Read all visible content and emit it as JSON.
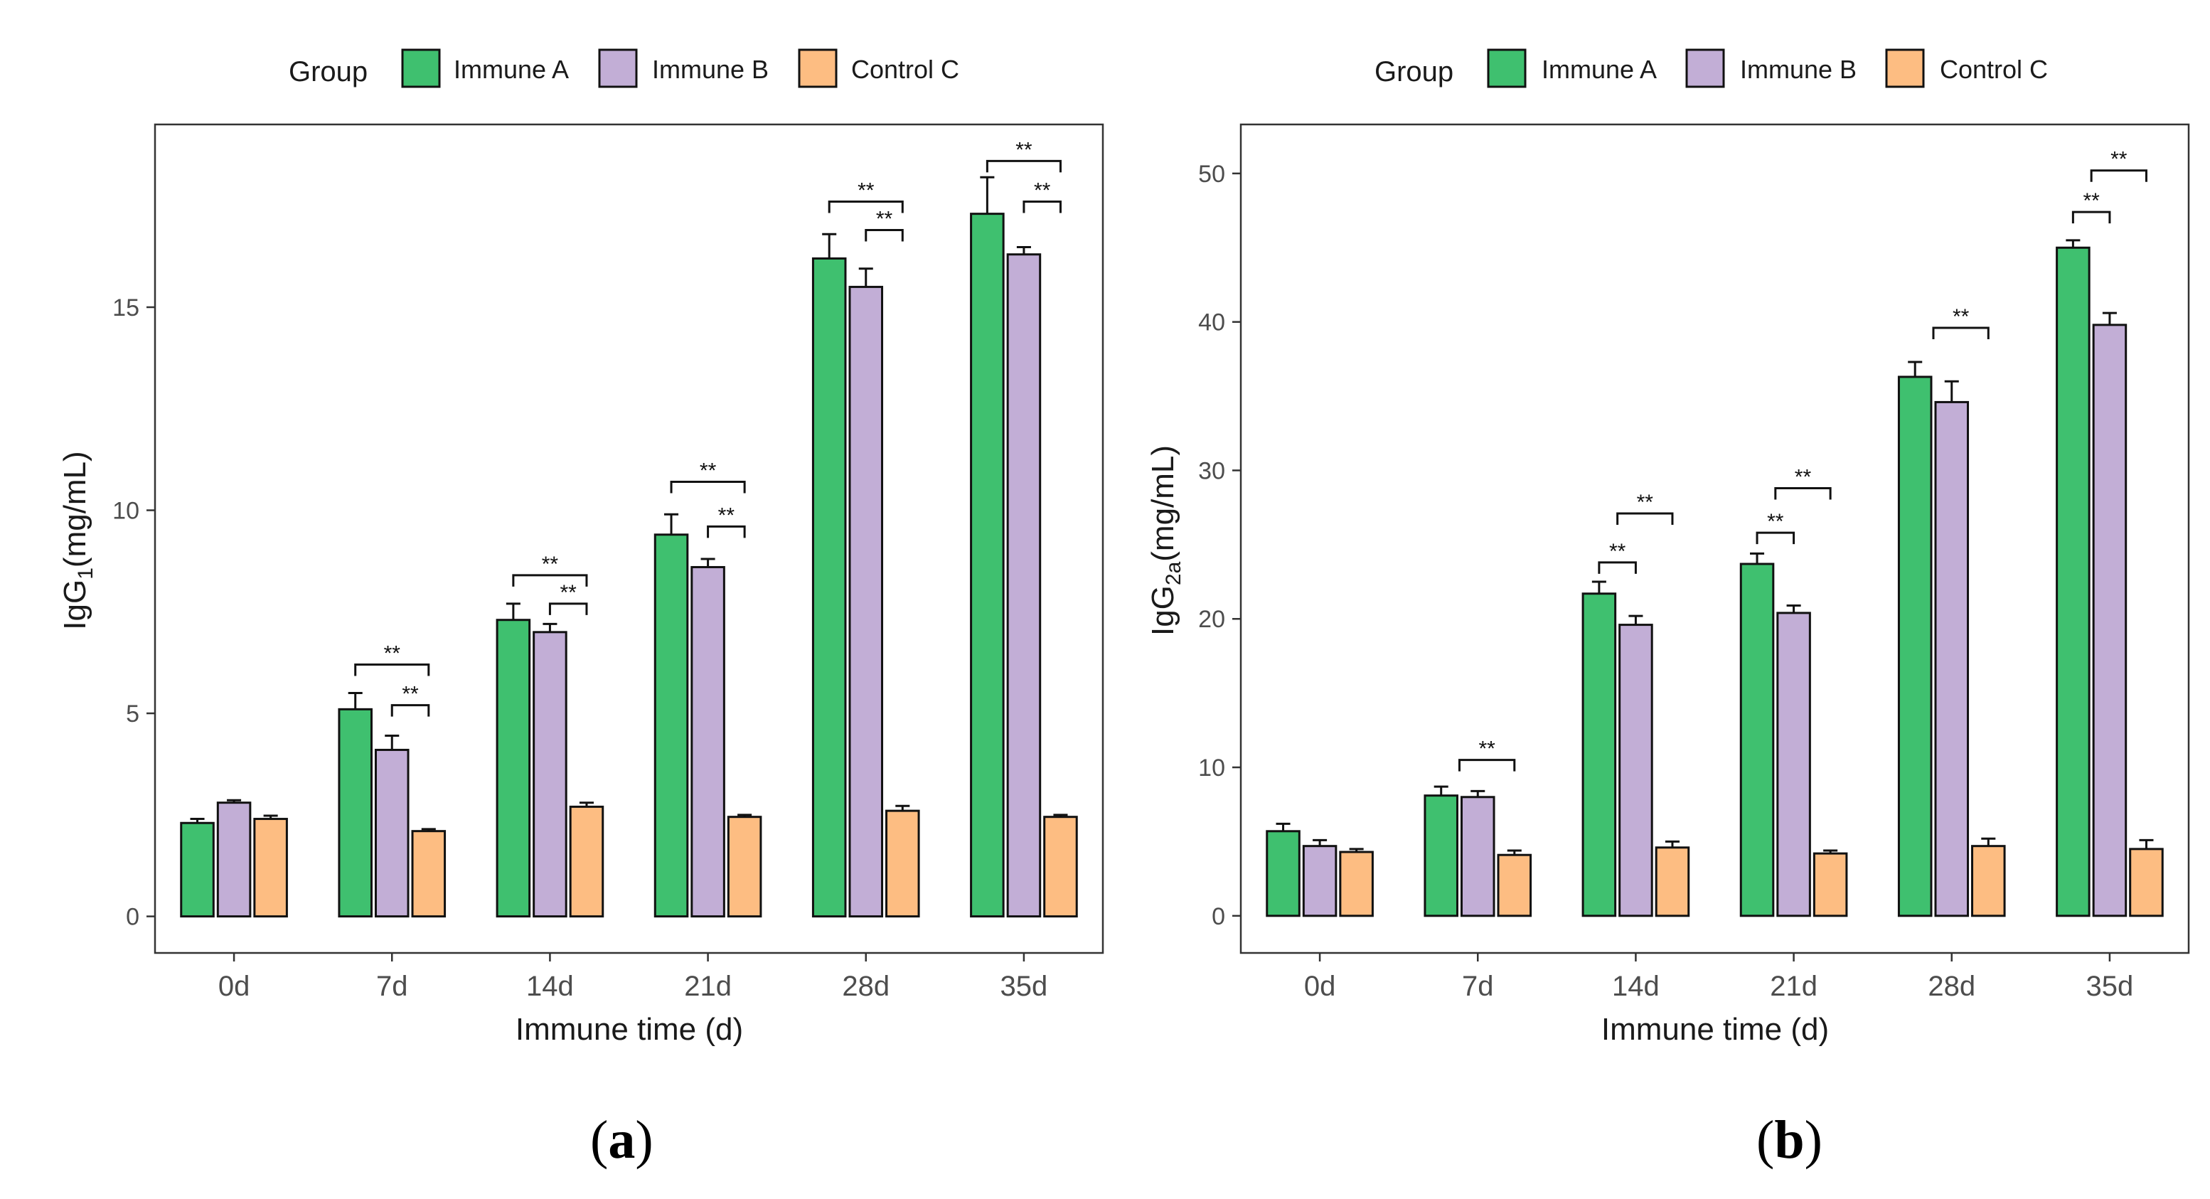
{
  "colors": {
    "immune_a": "#3fc06f",
    "immune_b": "#c2aed6",
    "control_c": "#fdbd82",
    "stroke": "#111111",
    "tick_text": "#4d4d4d",
    "panel_border": "#333333"
  },
  "legend": {
    "title": "Group",
    "items": [
      "Immune A",
      "Immune B",
      "Control C"
    ]
  },
  "captions": {
    "a_open": "(",
    "a_letter": "a",
    "a_close": ")",
    "b_open": "(",
    "b_letter": "b",
    "b_close": ")"
  },
  "chart_data": [
    {
      "id": "a",
      "type": "bar",
      "title": "",
      "xlabel": "Immune time (d)",
      "ylabel_main": "IgG",
      "ylabel_sub": "1",
      "ylabel_unit": "(mg/mL)",
      "categories": [
        "0d",
        "7d",
        "14d",
        "21d",
        "28d",
        "35d"
      ],
      "ylim": [
        -0.9,
        19.5
      ],
      "yticks": [
        0,
        5,
        10,
        15
      ],
      "series": [
        {
          "name": "Immune A",
          "values": [
            2.3,
            5.1,
            7.3,
            9.4,
            16.2,
            17.3
          ],
          "errors": [
            0.1,
            0.4,
            0.4,
            0.5,
            0.6,
            0.9
          ]
        },
        {
          "name": "Immune B",
          "values": [
            2.8,
            4.1,
            7.0,
            8.6,
            15.5,
            16.3
          ],
          "errors": [
            0.06,
            0.35,
            0.2,
            0.2,
            0.45,
            0.18
          ]
        },
        {
          "name": "Control C",
          "values": [
            2.4,
            2.1,
            2.7,
            2.45,
            2.6,
            2.45
          ],
          "errors": [
            0.08,
            0.05,
            0.1,
            0.05,
            0.12,
            0.05
          ]
        }
      ],
      "significance": [
        {
          "category": 1,
          "from": "Immune A",
          "to": "Control C",
          "y": 6.2,
          "label": "**"
        },
        {
          "category": 1,
          "from": "Immune B",
          "to": "Control C",
          "y": 5.2,
          "label": "**"
        },
        {
          "category": 2,
          "from": "Immune A",
          "to": "Control C",
          "y": 8.4,
          "label": "**"
        },
        {
          "category": 2,
          "from": "Immune B",
          "to": "Control C",
          "y": 7.7,
          "label": "**"
        },
        {
          "category": 3,
          "from": "Immune A",
          "to": "Control C",
          "y": 10.7,
          "label": "**"
        },
        {
          "category": 3,
          "from": "Immune B",
          "to": "Control C",
          "y": 9.6,
          "label": "**"
        },
        {
          "category": 4,
          "from": "Immune A",
          "to": "Control C",
          "y": 17.6,
          "label": "**"
        },
        {
          "category": 4,
          "from": "Immune B",
          "to": "Control C",
          "y": 16.9,
          "label": "**"
        },
        {
          "category": 5,
          "from": "Immune A",
          "to": "Control C",
          "y": 18.6,
          "label": "**"
        },
        {
          "category": 5,
          "from": "Immune B",
          "to": "Control C",
          "y": 17.6,
          "label": "**"
        }
      ]
    },
    {
      "id": "b",
      "type": "bar",
      "title": "",
      "xlabel": "Immune time (d)",
      "ylabel_main": "IgG",
      "ylabel_sub": "2a",
      "ylabel_unit": "(mg/mL)",
      "categories": [
        "0d",
        "7d",
        "14d",
        "21d",
        "28d",
        "35d"
      ],
      "ylim": [
        -2.5,
        53.3
      ],
      "yticks": [
        0,
        10,
        20,
        30,
        40,
        50
      ],
      "series": [
        {
          "name": "Immune A",
          "values": [
            5.7,
            8.1,
            21.7,
            23.7,
            36.3,
            45.0
          ],
          "errors": [
            0.5,
            0.6,
            0.8,
            0.7,
            1.0,
            0.5
          ]
        },
        {
          "name": "Immune B",
          "values": [
            4.7,
            8.0,
            19.6,
            20.4,
            34.6,
            39.8
          ],
          "errors": [
            0.4,
            0.4,
            0.6,
            0.5,
            1.4,
            0.8
          ]
        },
        {
          "name": "Control C",
          "values": [
            4.3,
            4.1,
            4.6,
            4.2,
            4.7,
            4.5
          ],
          "errors": [
            0.2,
            0.3,
            0.4,
            0.2,
            0.5,
            0.6
          ]
        }
      ],
      "significance": [
        {
          "category": 1,
          "from": "Immune AB",
          "to": "Control C",
          "y": 10.5,
          "label": "**"
        },
        {
          "category": 2,
          "from": "Immune A",
          "to": "Immune B",
          "y": 23.8,
          "label": "**"
        },
        {
          "category": 2,
          "from": "Immune AB",
          "to": "Control C",
          "y": 27.1,
          "label": "**"
        },
        {
          "category": 3,
          "from": "Immune A",
          "to": "Immune B",
          "y": 25.8,
          "label": "**"
        },
        {
          "category": 3,
          "from": "Immune AB",
          "to": "Control C",
          "y": 28.8,
          "label": "**"
        },
        {
          "category": 4,
          "from": "Immune AB",
          "to": "Control C",
          "y": 39.6,
          "label": "**"
        },
        {
          "category": 5,
          "from": "Immune A",
          "to": "Immune B",
          "y": 47.4,
          "label": "**"
        },
        {
          "category": 5,
          "from": "Immune AB",
          "to": "Control C",
          "y": 50.2,
          "label": "**"
        }
      ]
    }
  ]
}
